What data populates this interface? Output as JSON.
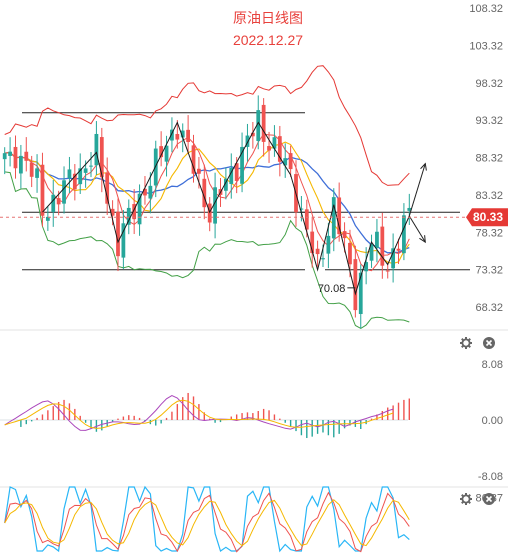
{
  "title": "原油日线图",
  "subtitle": "2022.12.27",
  "current_price": "80.33",
  "low_label": "70.08",
  "colors": {
    "up": "#26a69a",
    "down": "#ef5350",
    "upper_band": "#e53935",
    "lower_band": "#43a047",
    "ma_blue": "#3f6fd8",
    "ma_yellow": "#f5b800",
    "ma_red": "#ef5350",
    "price_line": "#e57373"
  },
  "chart_data": [
    {
      "type": "candlestick",
      "title": "原油日线图",
      "subtitle": "2022.12.27",
      "ylim": [
        66.32,
        109.32
      ],
      "y_ticks": [
        "108.32",
        "103.32",
        "98.32",
        "93.32",
        "88.32",
        "83.32",
        "78.32",
        "73.32",
        "68.32"
      ],
      "current_price": 80.33,
      "annotations": [
        {
          "type": "low",
          "value": 70.08,
          "label": "70.08"
        }
      ],
      "horizontal_levels": [
        94.3,
        81.0,
        73.3
      ],
      "pattern_points": [
        [
          7,
          81.0
        ],
        [
          17,
          89.0
        ],
        [
          21,
          77.0
        ],
        [
          32,
          93.0
        ],
        [
          38,
          81.0
        ],
        [
          47,
          93.0
        ],
        [
          53,
          86.0
        ],
        [
          58,
          73.3
        ],
        [
          61,
          82.0
        ],
        [
          65,
          70.1
        ],
        [
          68,
          77.0
        ],
        [
          71,
          74.0
        ],
        [
          75,
          80.5
        ]
      ],
      "forecast_arrows": [
        {
          "from": 80.5,
          "to": 87.5
        },
        {
          "from": 80.5,
          "to": 77.0
        }
      ],
      "indicators": [
        "upper band",
        "lower band",
        "moving averages"
      ]
    },
    {
      "type": "histogram",
      "indicator": "oscillator",
      "ylim": [
        -8.08,
        8.08
      ],
      "y_ticks": [
        "8.08",
        "0.00",
        "-8.08"
      ],
      "values": [
        -1.0,
        -0.6,
        -0.2,
        0.3,
        0.8,
        1.4,
        2.0,
        2.6,
        2.9,
        2.4,
        1.6,
        0.6,
        -0.4,
        -1.2,
        -1.7,
        -1.5,
        -0.9,
        -0.3,
        0.2,
        0.5,
        0.7,
        0.6,
        0.3,
        -0.2,
        -0.6,
        -0.8,
        -0.5,
        0.3,
        1.2,
        2.3,
        3.3,
        3.9,
        3.4,
        2.3,
        1.1,
        0.2,
        -0.4,
        -0.3,
        0.1,
        0.5,
        0.8,
        1.0,
        1.1,
        1.0,
        1.3,
        1.6,
        1.4,
        0.8,
        0.2,
        -0.4,
        -1.0,
        -1.6,
        -2.2,
        -2.6,
        -2.4,
        -2.0,
        -1.8,
        -2.2,
        -2.5,
        -2.0,
        -1.2,
        -0.8,
        -1.0,
        -1.3,
        -0.6,
        0.2,
        0.8,
        1.3,
        1.8,
        2.1,
        2.5,
        2.9,
        3.1
      ]
    },
    {
      "type": "line",
      "indicator": "stochastic",
      "y_ticks": [
        "86.87"
      ],
      "reference_level": 86.87
    }
  ]
}
